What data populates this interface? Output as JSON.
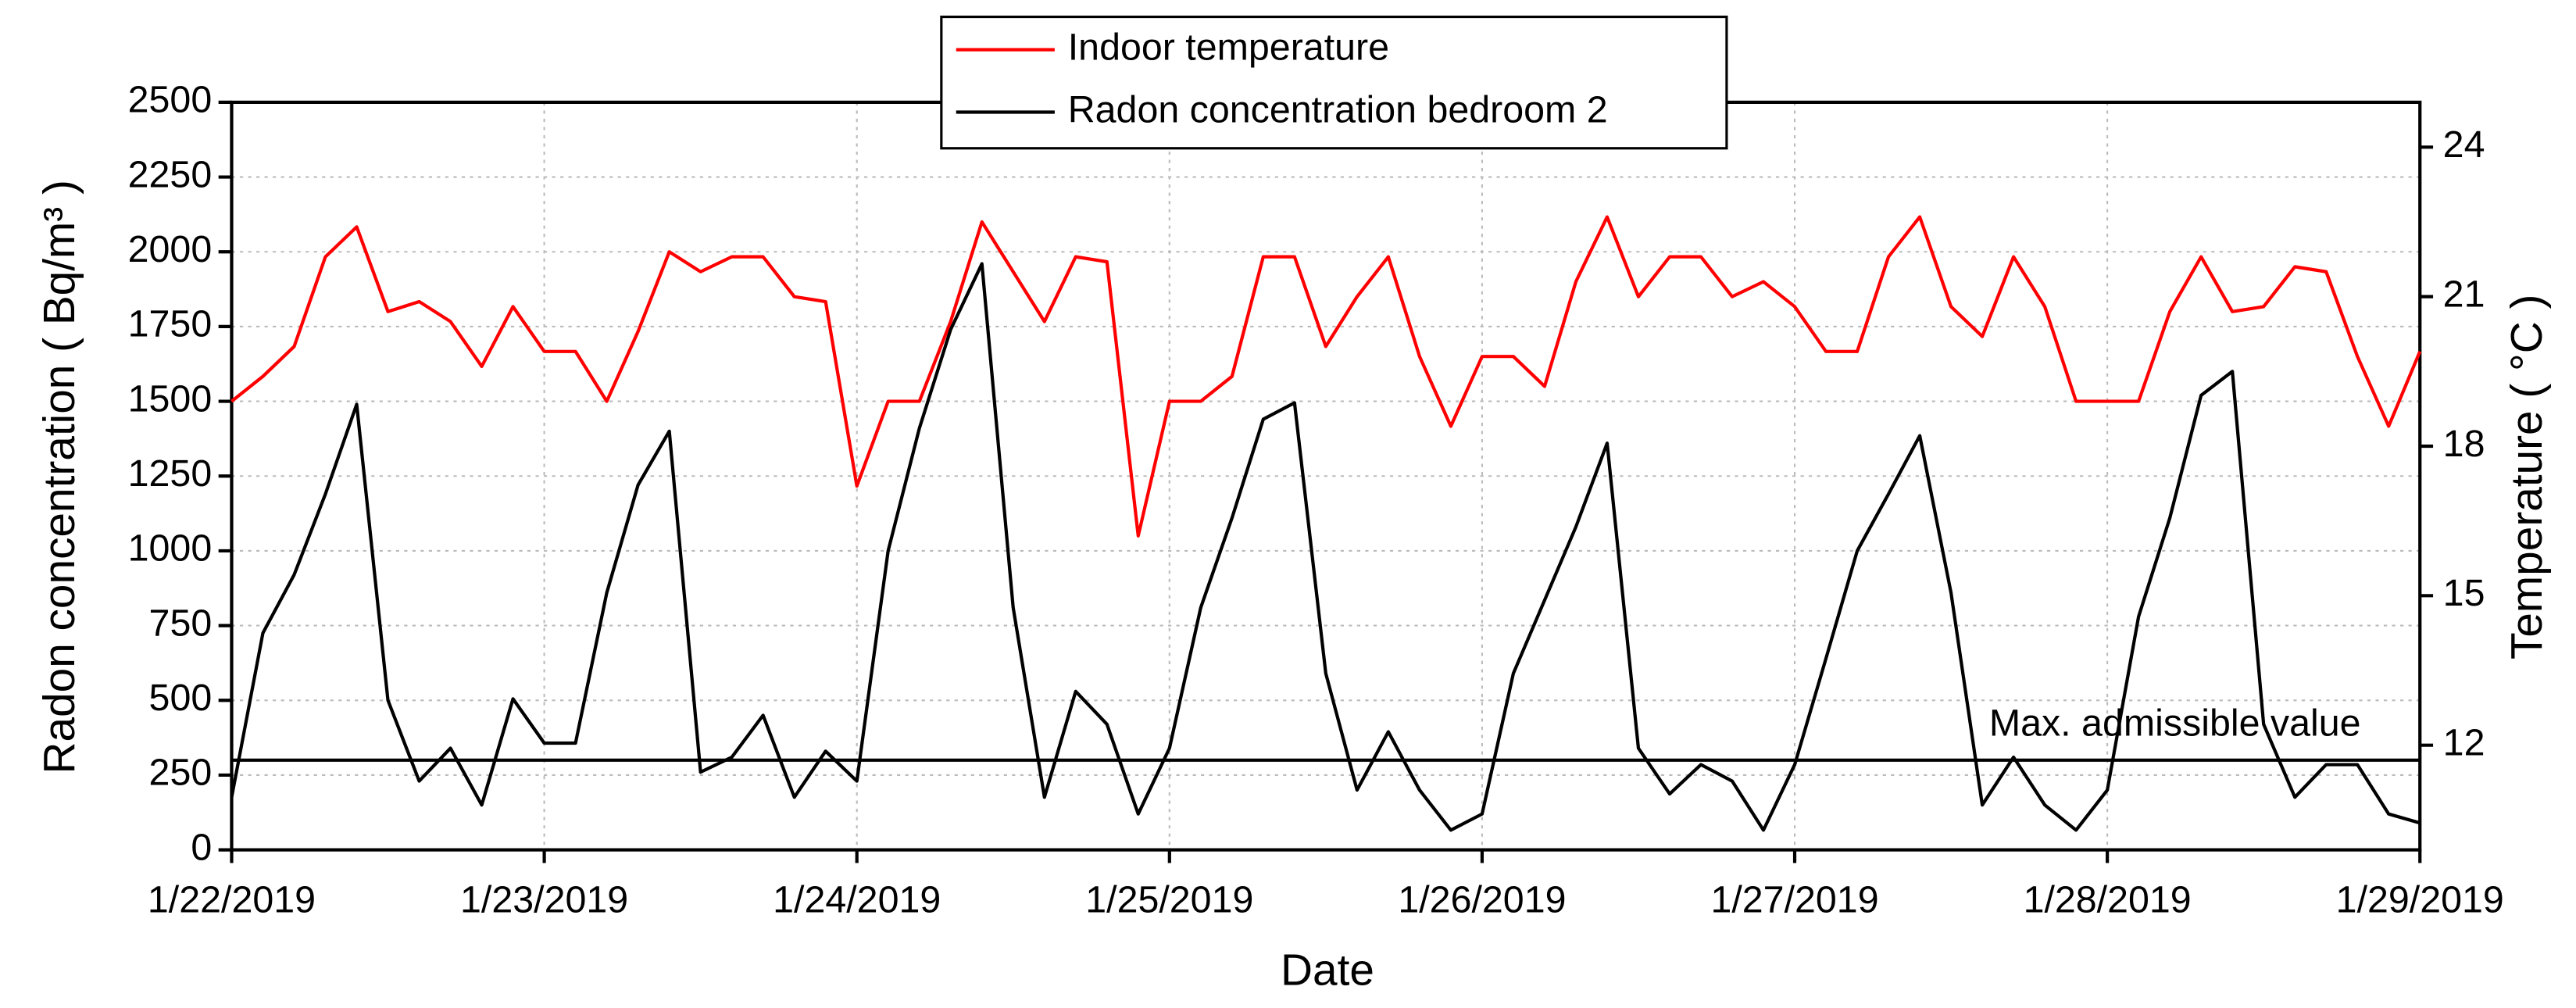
{
  "chart_data": {
    "type": "line",
    "xlabel": "Date",
    "ylabel": "Radon concentration ( Bq/m³ )",
    "y2label": "Temperature ( °C )",
    "x": [
      0,
      0.1,
      0.2,
      0.3,
      0.4,
      0.5,
      0.6,
      0.7,
      0.8,
      0.9,
      1,
      1.1,
      1.2,
      1.3,
      1.4,
      1.5,
      1.6,
      1.7,
      1.8,
      1.9,
      2,
      2.1,
      2.2,
      2.3,
      2.4,
      2.5,
      2.6,
      2.7,
      2.8,
      2.9,
      3,
      3.1,
      3.2,
      3.3,
      3.4,
      3.5,
      3.6,
      3.7,
      3.8,
      3.9,
      4,
      4.1,
      4.2,
      4.3,
      4.4,
      4.5,
      4.6,
      4.7,
      4.8,
      4.9,
      5,
      5.1,
      5.2,
      5.3,
      5.4,
      5.5,
      5.6,
      5.7,
      5.8,
      5.9,
      6,
      6.1,
      6.2,
      6.3,
      6.4,
      6.5,
      6.6,
      6.7,
      6.8,
      6.9,
      7
    ],
    "series": [
      {
        "name": "Indoor temperature",
        "color": "#ff0000",
        "axis": "y2",
        "values": [
          18.9,
          19.4,
          20.0,
          21.8,
          22.4,
          20.7,
          20.9,
          20.5,
          19.6,
          20.8,
          19.9,
          19.9,
          18.9,
          20.3,
          21.9,
          21.5,
          21.8,
          21.8,
          21.0,
          20.9,
          17.2,
          18.9,
          18.9,
          20.5,
          22.5,
          21.5,
          20.5,
          21.8,
          21.7,
          16.2,
          18.9,
          18.9,
          19.4,
          21.8,
          21.8,
          20.0,
          21.0,
          21.8,
          19.8,
          18.4,
          19.8,
          19.8,
          19.2,
          21.3,
          22.6,
          21.0,
          21.8,
          21.8,
          21.0,
          21.3,
          20.8,
          19.9,
          19.9,
          21.8,
          22.6,
          20.8,
          20.2,
          21.8,
          20.8,
          18.9,
          18.9,
          18.9,
          20.7,
          21.8,
          20.7,
          20.8,
          21.6,
          21.5,
          19.8,
          18.4,
          19.9
        ]
      },
      {
        "name": "Radon concentration bedroom 2",
        "color": "#000000",
        "values": [
          176,
          725,
          920,
          1190,
          1490,
          500,
          230,
          340,
          150,
          505,
          357,
          357,
          860,
          1220,
          1400,
          260,
          310,
          450,
          176,
          330,
          230,
          1000,
          1410,
          1740,
          1960,
          810,
          176,
          530,
          420,
          120,
          340,
          810,
          1110,
          1440,
          1495,
          590,
          200,
          395,
          200,
          66,
          120,
          590,
          835,
          1080,
          1360,
          340,
          187,
          285,
          230,
          66,
          285,
          640,
          1000,
          1190,
          1385,
          860,
          150,
          310,
          150,
          66,
          200,
          780,
          1110,
          1520,
          1600,
          420,
          176,
          285,
          285,
          120,
          90
        ]
      }
    ],
    "threshold": {
      "value": 300,
      "label": "Max. admissible value"
    },
    "xlim": [
      0,
      7
    ],
    "xticks": [
      {
        "value": 0,
        "label": "1/22/2019"
      },
      {
        "value": 1,
        "label": "1/23/2019"
      },
      {
        "value": 2,
        "label": "1/24/2019"
      },
      {
        "value": 3,
        "label": "1/25/2019"
      },
      {
        "value": 4,
        "label": "1/26/2019"
      },
      {
        "value": 5,
        "label": "1/27/2019"
      },
      {
        "value": 6,
        "label": "1/28/2019"
      },
      {
        "value": 7,
        "label": "1/29/2019"
      }
    ],
    "ylim": [
      0,
      2500
    ],
    "yticks": [
      0,
      250,
      500,
      750,
      1000,
      1250,
      1500,
      1750,
      2000,
      2250,
      2500
    ],
    "y2lim": [
      9.9,
      24.9
    ],
    "y2ticks": [
      12,
      15,
      18,
      21,
      24
    ],
    "grid": true,
    "legend": "top"
  }
}
